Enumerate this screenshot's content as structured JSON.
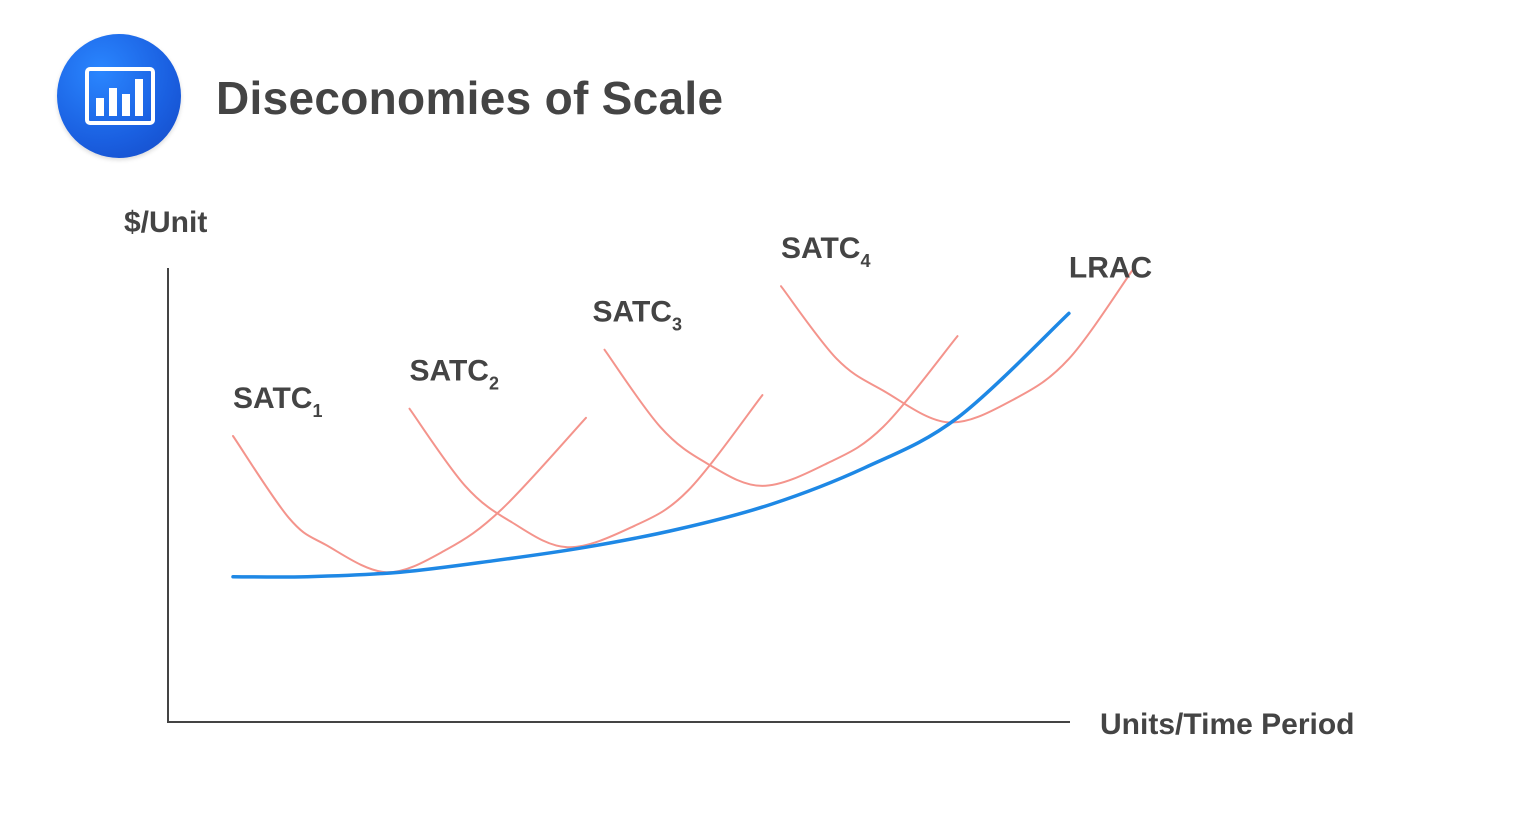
{
  "title": "Diseconomies of Scale",
  "icon": "bar-chart-icon",
  "colors": {
    "accent": "#1a5fe0",
    "lrac": "#1e88e5",
    "satc": "#f4948c",
    "axis": "#444444",
    "text": "#444444"
  },
  "chart_data": {
    "type": "line",
    "xlabel": "Units/Time Period",
    "ylabel": "$/Unit",
    "xlim": [
      0,
      100
    ],
    "ylim": [
      0,
      100
    ],
    "grid": false,
    "series": [
      {
        "name": "LRAC",
        "name_main": "LRAC",
        "name_sub": "",
        "color": "#1e88e5",
        "points": [
          [
            7,
            32
          ],
          [
            15,
            32
          ],
          [
            25,
            33
          ],
          [
            35,
            35.5
          ],
          [
            45,
            38.5
          ],
          [
            55,
            42.5
          ],
          [
            65,
            48
          ],
          [
            75,
            56
          ],
          [
            85,
            67
          ],
          [
            97,
            90
          ]
        ]
      },
      {
        "name": "SATC1",
        "name_main": "SATC",
        "name_sub": "1",
        "color": "#f4948c",
        "points": [
          [
            7,
            63
          ],
          [
            13,
            45
          ],
          [
            17,
            39
          ],
          [
            23.5,
            33
          ],
          [
            30,
            38
          ],
          [
            36,
            47
          ],
          [
            45,
            67
          ]
        ]
      },
      {
        "name": "SATC2",
        "name_main": "SATC",
        "name_sub": "2",
        "color": "#f4948c",
        "points": [
          [
            26,
            69
          ],
          [
            32,
            52
          ],
          [
            37,
            44
          ],
          [
            43,
            38.5
          ],
          [
            50,
            43
          ],
          [
            56,
            51
          ],
          [
            64,
            72
          ]
        ]
      },
      {
        "name": "SATC3",
        "name_main": "SATC",
        "name_sub": "3",
        "color": "#f4948c",
        "points": [
          [
            47,
            82
          ],
          [
            53,
            65
          ],
          [
            58,
            57
          ],
          [
            64,
            52
          ],
          [
            71,
            57
          ],
          [
            77,
            65
          ],
          [
            85,
            85
          ]
        ]
      },
      {
        "name": "SATC4",
        "name_main": "SATC",
        "name_sub": "4",
        "color": "#f4948c",
        "points": [
          [
            66,
            96
          ],
          [
            72,
            80
          ],
          [
            77,
            73
          ],
          [
            84,
            66
          ],
          [
            91,
            71
          ],
          [
            97,
            80
          ],
          [
            104,
            100
          ]
        ]
      }
    ]
  }
}
